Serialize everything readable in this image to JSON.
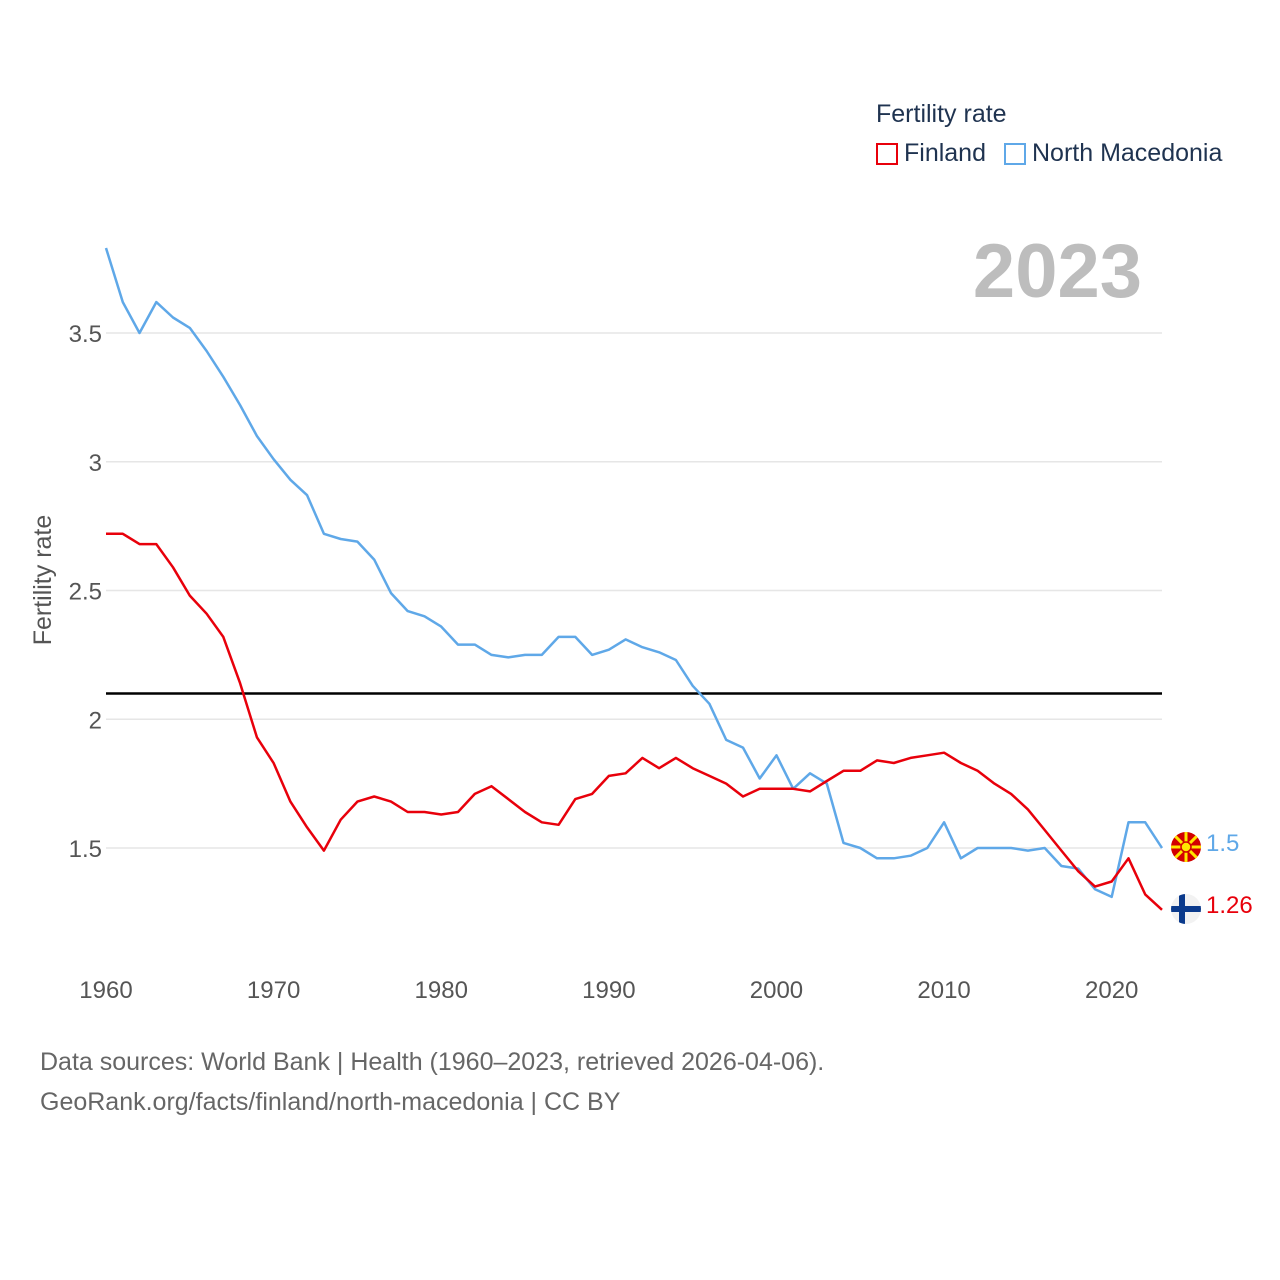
{
  "legend": {
    "title": "Fertility rate",
    "items": [
      {
        "label": "Finland",
        "color": "#e8000b"
      },
      {
        "label": "North Macedonia",
        "color": "#5fa8e8"
      }
    ]
  },
  "current_year": "2023",
  "end_labels": {
    "north_macedonia": {
      "value": "1.5",
      "color": "#5fa8e8",
      "flag": "north-macedonia-flag-icon"
    },
    "finland": {
      "value": "1.26",
      "color": "#e8000b",
      "flag": "finland-flag-icon"
    }
  },
  "footer": {
    "line1": "Data sources: World Bank | Health (1960–2023, retrieved 2026-04-06).",
    "line2": "GeoRank.org/facts/finland/north-macedonia | CC BY"
  },
  "chart_data": {
    "type": "line",
    "title": "Fertility rate",
    "xlabel": "",
    "ylabel": "Fertility rate",
    "xlim": [
      1960,
      2023
    ],
    "ylim": [
      1.1,
      3.85
    ],
    "xticks": [
      1960,
      1970,
      1980,
      1990,
      2000,
      2010,
      2020
    ],
    "yticks": [
      1.5,
      2,
      2.5,
      3,
      3.5
    ],
    "ytick_labels": [
      "1.5",
      "2",
      "2.5",
      "3",
      "3.5"
    ],
    "reference_line": {
      "y": 2.1,
      "color": "#000000"
    },
    "grid": true,
    "x": [
      1960,
      1961,
      1962,
      1963,
      1964,
      1965,
      1966,
      1967,
      1968,
      1969,
      1970,
      1971,
      1972,
      1973,
      1974,
      1975,
      1976,
      1977,
      1978,
      1979,
      1980,
      1981,
      1982,
      1983,
      1984,
      1985,
      1986,
      1987,
      1988,
      1989,
      1990,
      1991,
      1992,
      1993,
      1994,
      1995,
      1996,
      1997,
      1998,
      1999,
      2000,
      2001,
      2002,
      2003,
      2004,
      2005,
      2006,
      2007,
      2008,
      2009,
      2010,
      2011,
      2012,
      2013,
      2014,
      2015,
      2016,
      2017,
      2018,
      2019,
      2020,
      2021,
      2022,
      2023
    ],
    "series": [
      {
        "name": "Finland",
        "color": "#e8000b",
        "values": [
          2.72,
          2.72,
          2.68,
          2.68,
          2.59,
          2.48,
          2.41,
          2.32,
          2.14,
          1.93,
          1.83,
          1.68,
          1.58,
          1.49,
          1.61,
          1.68,
          1.7,
          1.68,
          1.64,
          1.64,
          1.63,
          1.64,
          1.71,
          1.74,
          1.69,
          1.64,
          1.6,
          1.59,
          1.69,
          1.71,
          1.78,
          1.79,
          1.85,
          1.81,
          1.85,
          1.81,
          1.78,
          1.75,
          1.7,
          1.73,
          1.73,
          1.73,
          1.72,
          1.76,
          1.8,
          1.8,
          1.84,
          1.83,
          1.85,
          1.86,
          1.87,
          1.83,
          1.8,
          1.75,
          1.71,
          1.65,
          1.57,
          1.49,
          1.41,
          1.35,
          1.37,
          1.46,
          1.32,
          1.26
        ]
      },
      {
        "name": "North Macedonia",
        "color": "#5fa8e8",
        "values": [
          3.83,
          3.62,
          3.5,
          3.62,
          3.56,
          3.52,
          3.43,
          3.33,
          3.22,
          3.1,
          3.01,
          2.93,
          2.87,
          2.72,
          2.7,
          2.69,
          2.62,
          2.49,
          2.42,
          2.4,
          2.36,
          2.29,
          2.29,
          2.25,
          2.24,
          2.25,
          2.25,
          2.32,
          2.32,
          2.25,
          2.27,
          2.31,
          2.28,
          2.26,
          2.23,
          2.13,
          2.06,
          1.92,
          1.89,
          1.77,
          1.86,
          1.73,
          1.79,
          1.75,
          1.52,
          1.5,
          1.46,
          1.46,
          1.47,
          1.5,
          1.6,
          1.46,
          1.5,
          1.5,
          1.5,
          1.49,
          1.5,
          1.43,
          1.42,
          1.34,
          1.31,
          1.6,
          1.6,
          1.5
        ]
      }
    ]
  }
}
